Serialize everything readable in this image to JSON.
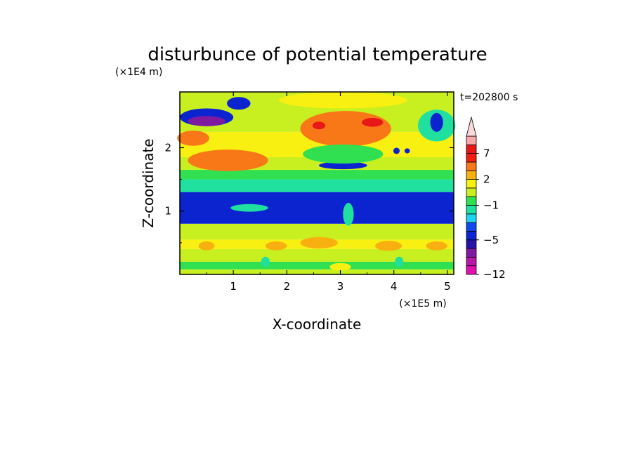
{
  "chart_data": {
    "type": "heatmap",
    "title": "disturbunce of potential temperature",
    "time_label": "t=202800 s",
    "xlabel": "X-coordinate",
    "ylabel": "Z-coordinate",
    "x_unit": "(×1E5 m)",
    "y_unit": "(×1E4 m)",
    "xlim": [
      0,
      5.12
    ],
    "ylim": [
      0,
      2.88
    ],
    "x_ticks": [
      1,
      2,
      3,
      4,
      5
    ],
    "y_ticks": [
      1,
      2
    ],
    "x_tick_labels": [
      "1",
      "2",
      "3",
      "4",
      "5"
    ],
    "y_tick_labels": [
      "1",
      "2"
    ],
    "colorbar": {
      "extend": "max",
      "levels": [
        -12,
        -10,
        -8,
        -6,
        -5,
        -4,
        -3,
        -2,
        -1,
        0,
        1,
        2,
        3,
        5,
        7,
        9,
        12
      ],
      "colors": [
        "#e010b0",
        "#b818a8",
        "#7e1aa0",
        "#2414a8",
        "#0c24d0",
        "#1048f0",
        "#20d4f0",
        "#20e0a0",
        "#30e050",
        "#c8f020",
        "#f8f010",
        "#f8b010",
        "#f87818",
        "#f02010",
        "#e81818",
        "#f8a8a8",
        "#f8d8d8"
      ],
      "tick_values": [
        7,
        2,
        -1,
        -5,
        -12
      ],
      "tick_labels": [
        "7",
        "2",
        "−1",
        "−5",
        "−12"
      ]
    },
    "bands": [
      {
        "z": [
          0.0,
          0.08
        ],
        "value": 0.5
      },
      {
        "z": [
          0.08,
          0.2
        ],
        "value": -0.5
      },
      {
        "z": [
          0.2,
          0.4
        ],
        "value": 0.5
      },
      {
        "z": [
          0.4,
          0.55
        ],
        "value": 1.5
      },
      {
        "z": [
          0.55,
          0.8
        ],
        "value": 0.5
      },
      {
        "z": [
          0.8,
          1.3
        ],
        "value": -4.5
      },
      {
        "z": [
          1.3,
          1.5
        ],
        "value": -1.5
      },
      {
        "z": [
          1.5,
          1.65
        ],
        "value": -0.5
      },
      {
        "z": [
          1.65,
          1.85
        ],
        "value": 0.5
      },
      {
        "z": [
          1.85,
          2.25
        ],
        "value": 1.5
      },
      {
        "z": [
          2.25,
          2.88
        ],
        "value": 0.5
      }
    ],
    "features": [
      {
        "cx": 0.9,
        "cz": 1.8,
        "rx": 0.75,
        "rz": 0.17,
        "value": 4
      },
      {
        "cx": 3.1,
        "cz": 2.3,
        "rx": 0.85,
        "rz": 0.28,
        "value": 4
      },
      {
        "cx": 3.05,
        "cz": 2.75,
        "rx": 1.2,
        "rz": 0.13,
        "value": 1.5
      },
      {
        "cx": 0.25,
        "cz": 2.15,
        "rx": 0.3,
        "rz": 0.12,
        "value": 4
      },
      {
        "cx": 0.5,
        "cz": 2.48,
        "rx": 0.5,
        "rz": 0.14,
        "value": -4.5
      },
      {
        "cx": 0.5,
        "cz": 2.42,
        "rx": 0.35,
        "rz": 0.08,
        "value": -7
      },
      {
        "cx": 1.1,
        "cz": 2.7,
        "rx": 0.22,
        "rz": 0.1,
        "value": -4.5
      },
      {
        "cx": 4.8,
        "cz": 2.35,
        "rx": 0.35,
        "rz": 0.25,
        "value": -1.5
      },
      {
        "cx": 4.8,
        "cz": 2.4,
        "rx": 0.12,
        "rz": 0.15,
        "value": -4.5
      },
      {
        "cx": 3.05,
        "cz": 1.72,
        "rx": 0.45,
        "rz": 0.06,
        "value": -4.5
      },
      {
        "cx": 3.05,
        "cz": 1.9,
        "rx": 0.75,
        "rz": 0.15,
        "value": -0.5
      },
      {
        "cx": 2.6,
        "cz": 2.35,
        "rx": 0.12,
        "rz": 0.06,
        "value": 8
      },
      {
        "cx": 3.6,
        "cz": 2.4,
        "rx": 0.2,
        "rz": 0.07,
        "value": 8
      },
      {
        "cx": 4.05,
        "cz": 1.95,
        "rx": 0.06,
        "rz": 0.05,
        "value": -4.5
      },
      {
        "cx": 4.25,
        "cz": 1.95,
        "rx": 0.05,
        "rz": 0.04,
        "value": -4.5
      },
      {
        "cx": 1.3,
        "cz": 1.05,
        "rx": 0.35,
        "rz": 0.06,
        "value": -1.5
      },
      {
        "cx": 3.15,
        "cz": 0.95,
        "rx": 0.1,
        "rz": 0.18,
        "value": -1.5
      },
      {
        "cx": 0.5,
        "cz": 0.45,
        "rx": 0.15,
        "rz": 0.07,
        "value": 2
      },
      {
        "cx": 1.8,
        "cz": 0.45,
        "rx": 0.2,
        "rz": 0.07,
        "value": 2
      },
      {
        "cx": 2.6,
        "cz": 0.5,
        "rx": 0.35,
        "rz": 0.09,
        "value": 2
      },
      {
        "cx": 3.9,
        "cz": 0.45,
        "rx": 0.25,
        "rz": 0.08,
        "value": 2
      },
      {
        "cx": 4.8,
        "cz": 0.45,
        "rx": 0.2,
        "rz": 0.07,
        "value": 2
      },
      {
        "cx": 1.6,
        "cz": 0.2,
        "rx": 0.08,
        "rz": 0.08,
        "value": -1.5
      },
      {
        "cx": 4.1,
        "cz": 0.2,
        "rx": 0.08,
        "rz": 0.08,
        "value": -1.5
      },
      {
        "cx": 3.0,
        "cz": 0.12,
        "rx": 0.2,
        "rz": 0.06,
        "value": 1.5
      }
    ]
  }
}
